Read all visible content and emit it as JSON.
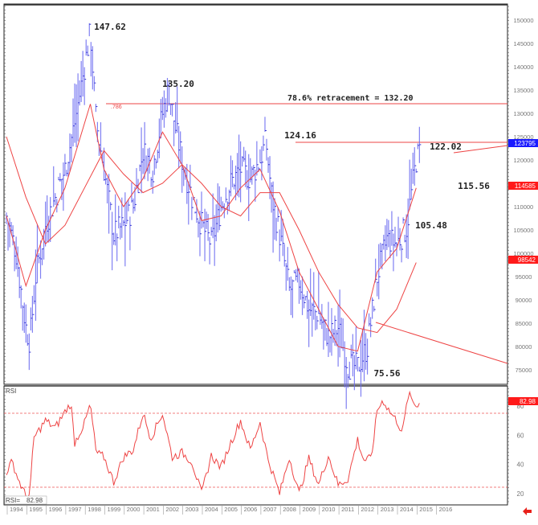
{
  "chart_data": [
    {
      "type": "line",
      "subtype": "ohlc-bar",
      "title": "",
      "xlabel": "",
      "ylabel": "",
      "ylim": [
        73000,
        153000
      ],
      "y_ticks": [
        "150000",
        "145000",
        "140000",
        "135000",
        "130000",
        "125000",
        "120000",
        "115000",
        "110000",
        "105000",
        "100000",
        "95000",
        "90000",
        "85000",
        "80000",
        "75000"
      ],
      "x_ticks": [
        "1994",
        "1995",
        "1996",
        "1997",
        "1998",
        "1999",
        "2000",
        "2001",
        "2002",
        "2003",
        "2004",
        "2005",
        "2006",
        "2007",
        "2008",
        "2009",
        "2010",
        "2011",
        "2012",
        "2013",
        "2014",
        "2015",
        "2016"
      ],
      "series": [
        {
          "name": "Price",
          "color": "#3333dd",
          "x": [
            1994.0,
            1994.5,
            1995.0,
            1995.2,
            1995.5,
            1996.0,
            1996.5,
            1997.0,
            1997.5,
            1998.0,
            1998.3,
            1998.6,
            1999.0,
            1999.5,
            2000.0,
            2000.5,
            2001.0,
            2001.5,
            2002.0,
            2002.3,
            2002.7,
            2003.0,
            2003.5,
            2004.0,
            2004.5,
            2005.0,
            2005.5,
            2006.0,
            2006.5,
            2007.0,
            2007.3,
            2007.6,
            2008.0,
            2008.5,
            2009.0,
            2009.5,
            2010.0,
            2010.5,
            2011.0,
            2011.5,
            2012.0,
            2012.5,
            2013.0,
            2013.5,
            2014.0,
            2014.5,
            2015.0,
            2015.2
          ],
          "values": [
            108,
            100,
            84,
            81,
            95,
            106,
            112,
            118,
            128,
            140,
            147.62,
            128,
            118,
            104,
            106,
            110,
            122,
            118,
            130,
            135.2,
            126,
            120,
            112,
            106,
            102,
            110,
            115,
            118,
            116,
            120,
            124.16,
            112,
            104,
            92,
            94,
            88,
            87,
            82,
            84,
            76,
            75.56,
            80,
            95,
            103,
            102,
            105.48,
            120,
            122.02
          ]
        },
        {
          "name": "Short MA",
          "color": "#ee4444",
          "x": [
            1994.0,
            1995.0,
            1996.0,
            1997.0,
            1998.3,
            1999.0,
            2000.0,
            2001.0,
            2002.0,
            2003.0,
            2004.0,
            2005.0,
            2006.0,
            2007.0,
            2008.0,
            2009.0,
            2010.0,
            2011.0,
            2012.0,
            2013.0,
            2014.0,
            2015.0
          ],
          "values": [
            108,
            93,
            105,
            114,
            132,
            118,
            110,
            116,
            126,
            119,
            107,
            108,
            114,
            118,
            109,
            96,
            88,
            80,
            79,
            96,
            101,
            114
          ]
        },
        {
          "name": "Long MA",
          "color": "#ee4444",
          "x": [
            1994.0,
            1995.0,
            1996.0,
            1997.0,
            1998.0,
            1999.0,
            2000.0,
            2001.0,
            2002.0,
            2003.0,
            2004.0,
            2005.0,
            2006.0,
            2007.0,
            2008.0,
            2009.0,
            2010.0,
            2011.0,
            2012.0,
            2013.0,
            2014.0,
            2015.0
          ],
          "values": [
            125,
            112,
            102,
            106,
            114,
            122,
            117,
            113,
            115,
            119,
            115,
            110,
            108,
            113,
            113,
            105,
            96,
            89,
            84,
            83,
            88,
            98
          ]
        }
      ],
      "annotations": [
        {
          "text": "147.62",
          "x": 1998.3,
          "y": 147.62
        },
        {
          "text": "135.20",
          "x": 2002.2,
          "y": 135.2
        },
        {
          "text": "124.16",
          "x": 2007.3,
          "y": 124.16
        },
        {
          "text": "122.02",
          "x": 2014.7,
          "y": 122.02
        },
        {
          "text": "115.56",
          "x": 2015.0,
          "y": 115.56
        },
        {
          "text": "105.48",
          "x": 2013.5,
          "y": 105.48
        },
        {
          "text": "75.56",
          "x": 2011.5,
          "y": 75.56
        },
        {
          "text": "78.6% retracement = 132.20",
          "x": 2009.0,
          "y": 132.2
        },
        {
          "text": ".786",
          "x": 1998.5,
          "y": 132.2
        }
      ],
      "horizontal_lines": [
        {
          "name": "78.6% retracement",
          "value": 132.2,
          "from": 1998.3,
          "color": "#ee4444"
        },
        {
          "name": "2007 high",
          "value": 124.16,
          "from": 2007.3,
          "color": "#ee4444"
        }
      ],
      "trend_lines": [
        {
          "from": [
            2011.0,
            85.5
          ],
          "to": [
            2016.5,
            76.0
          ],
          "color": "#ee4444"
        },
        {
          "from": [
            2014.7,
            121.5
          ],
          "to": [
            2016.5,
            123.0
          ],
          "color": "#ee4444"
        }
      ],
      "price_tags": [
        {
          "value": "123795",
          "color": "#1a1aff"
        },
        {
          "value": "114585",
          "color": "#ff1a1a"
        },
        {
          "value": "98542",
          "color": "#ff1a1a"
        }
      ],
      "grid": false,
      "legend_position": "none"
    },
    {
      "type": "line",
      "title": "RSI",
      "ylim": [
        10,
        90
      ],
      "y_ticks": [
        "80",
        "60",
        "40",
        "20"
      ],
      "overbought": 75,
      "oversold": 25,
      "current_label": "RSI= 82.98",
      "current_value": "82.98",
      "series": [
        {
          "name": "RSI",
          "color": "#ee4444",
          "x": [
            1994.0,
            1994.3,
            1994.6,
            1995.0,
            1995.2,
            1995.4,
            1996.0,
            1996.5,
            1997.0,
            1997.3,
            1997.5,
            1998.0,
            1998.3,
            1998.6,
            1999.0,
            1999.5,
            2000.0,
            2000.5,
            2001.0,
            2001.4,
            2002.0,
            2002.5,
            2003.0,
            2003.5,
            2004.0,
            2004.5,
            2005.0,
            2005.5,
            2006.0,
            2006.5,
            2007.0,
            2007.4,
            2008.0,
            2008.5,
            2009.0,
            2009.5,
            2010.0,
            2010.5,
            2011.0,
            2011.5,
            2012.0,
            2012.3,
            2012.7,
            2013.0,
            2013.3,
            2013.7,
            2014.0,
            2014.3,
            2014.6,
            2015.0,
            2015.2
          ],
          "values": [
            35,
            42,
            30,
            18,
            20,
            58,
            70,
            65,
            76,
            82,
            55,
            68,
            81,
            48,
            45,
            28,
            45,
            50,
            75,
            58,
            75,
            45,
            48,
            42,
            20,
            46,
            38,
            55,
            70,
            50,
            69,
            44,
            20,
            45,
            20,
            44,
            26,
            46,
            26,
            30,
            57,
            43,
            44,
            77,
            84,
            75,
            70,
            62,
            88,
            80,
            84
          ]
        }
      ]
    }
  ],
  "axis": {
    "price_labels": [
      "150000",
      "145000",
      "140000",
      "135000",
      "130000",
      "125000",
      "120000",
      "115000",
      "110000",
      "105000",
      "100000",
      "95000",
      "90000",
      "85000",
      "80000",
      "75000"
    ],
    "rsi_labels": [
      "80",
      "60",
      "40",
      "20"
    ],
    "years": [
      "1994",
      "1995",
      "1996",
      "1997",
      "1998",
      "1999",
      "2000",
      "2001",
      "2002",
      "2003",
      "2004",
      "2005",
      "2006",
      "2007",
      "2008",
      "2009",
      "2010",
      "2011",
      "2012",
      "2013",
      "2014",
      "2015",
      "2016"
    ]
  },
  "labels": {
    "peak_1998": "147.62",
    "peak_2002": "135.20",
    "peak_2007": "124.16",
    "high_2015": "122.02",
    "ma_2015": "115.56",
    "level_2014": "105.48",
    "low_2012": "75.56",
    "retracement": "78.6% retracement = 132.20",
    "fib_tag": ".786",
    "rsi_title": "RSI",
    "rsi_readout_label": "RSI=",
    "rsi_readout_value": "82.98"
  },
  "tags": {
    "last_price": "123795",
    "ma_short": "114585",
    "ma_long": "98542",
    "rsi_value": "82.98"
  },
  "colors": {
    "price_bars": "#4444ee",
    "indicator": "#ee4444",
    "tag_blue": "#1a1aff",
    "tag_red": "#ff1a1a",
    "scroll_arrow": "#e8201a"
  },
  "nav": {
    "scroll_arrow_icon": "arrow-left-icon"
  }
}
